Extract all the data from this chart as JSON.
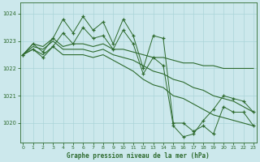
{
  "title": "Graphe pression niveau de la mer (hPa)",
  "bg_color": "#cce8ec",
  "grid_color": "#aad4d8",
  "line_color": "#2d6a2d",
  "xlim": [
    -0.3,
    23.3
  ],
  "ylim": [
    1019.3,
    1024.4
  ],
  "yticks": [
    1020,
    1021,
    1022,
    1023,
    1024
  ],
  "xticks": [
    0,
    1,
    2,
    3,
    4,
    5,
    6,
    7,
    8,
    9,
    10,
    11,
    12,
    13,
    14,
    15,
    16,
    17,
    18,
    19,
    20,
    21,
    22,
    23
  ],
  "series_jagged1": [
    1022.5,
    1022.9,
    1022.6,
    1023.1,
    1023.8,
    1023.3,
    1023.9,
    1023.4,
    1023.7,
    1022.9,
    1023.8,
    1023.2,
    1022.0,
    1023.2,
    1023.1,
    1020.0,
    1020.0,
    1019.7,
    1019.9,
    1019.6,
    1020.6,
    1020.4,
    1020.4,
    1019.9
  ],
  "series_jagged2": [
    1022.5,
    1022.7,
    1022.4,
    1022.8,
    1023.3,
    1022.9,
    1023.5,
    1023.1,
    1023.2,
    1022.7,
    1023.4,
    1022.9,
    1021.8,
    1022.4,
    1022.1,
    1019.9,
    1019.5,
    1019.6,
    1020.1,
    1020.5,
    1021.0,
    1020.9,
    1020.8,
    1020.4
  ],
  "series_flat1": [
    1022.5,
    1022.9,
    1022.8,
    1023.1,
    1022.8,
    1022.9,
    1022.9,
    1022.8,
    1022.9,
    1022.7,
    1022.7,
    1022.6,
    1022.5,
    1022.4,
    1022.4,
    1022.3,
    1022.2,
    1022.2,
    1022.1,
    1022.1,
    1022.0,
    1022.0,
    1022.0,
    1022.0
  ],
  "series_flat2": [
    1022.5,
    1022.8,
    1022.7,
    1023.0,
    1022.7,
    1022.7,
    1022.7,
    1022.6,
    1022.7,
    1022.5,
    1022.4,
    1022.3,
    1022.1,
    1021.9,
    1021.8,
    1021.6,
    1021.5,
    1021.3,
    1021.2,
    1021.0,
    1020.9,
    1020.8,
    1020.6,
    1020.4
  ],
  "series_flat3": [
    1022.5,
    1022.7,
    1022.5,
    1022.8,
    1022.5,
    1022.5,
    1022.5,
    1022.4,
    1022.5,
    1022.3,
    1022.1,
    1021.9,
    1021.6,
    1021.4,
    1021.3,
    1021.0,
    1020.9,
    1020.7,
    1020.5,
    1020.3,
    1020.2,
    1020.1,
    1020.0,
    1019.9
  ]
}
